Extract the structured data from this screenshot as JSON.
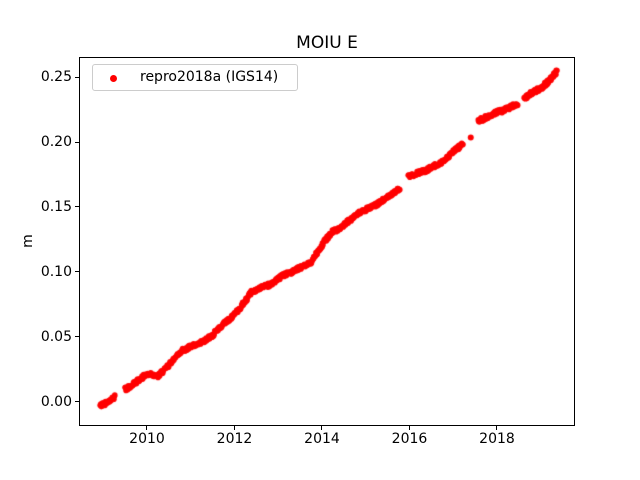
{
  "chart_data": {
    "type": "scatter",
    "title": "MOIU E",
    "xlabel": "",
    "ylabel": "m",
    "legend_entries": [
      "repro2018a (IGS14)"
    ],
    "legend_position": "upper left",
    "marker": "dot",
    "color": "#ff0000",
    "axis_color": "#000000",
    "background": "#ffffff",
    "grid": false,
    "xlim": [
      2008.446,
      2019.783
    ],
    "ylim": [
      -0.0185,
      0.2654
    ],
    "xticks": {
      "values": [
        2010,
        2012,
        2014,
        2016,
        2018
      ],
      "labels": [
        "2010",
        "2012",
        "2014",
        "2016",
        "2018"
      ]
    },
    "yticks": {
      "values": [
        0.0,
        0.05,
        0.1,
        0.15,
        0.2,
        0.25
      ],
      "labels": [
        "0.00",
        "0.05",
        "0.10",
        "0.15",
        "0.20",
        "0.25"
      ]
    },
    "series": [
      {
        "name": "repro2018a (IGS14)",
        "color": "#ff0000",
        "points_per_year": 80,
        "noise_m": 0.0016,
        "trend_segments": [
          {
            "anchors": [
              [
                2008.93,
                -0.0025
              ],
              [
                2009.05,
                -0.001
              ],
              [
                2009.27,
                0.0035
              ]
            ]
          },
          {
            "anchors": [
              [
                2009.5,
                0.01
              ],
              [
                2010.0,
                0.021
              ],
              [
                2010.25,
                0.02
              ],
              [
                2010.75,
                0.038
              ],
              [
                2011.5,
                0.051
              ],
              [
                2012.0,
                0.068
              ],
              [
                2012.4,
                0.084
              ],
              [
                2013.2,
                0.098
              ],
              [
                2013.75,
                0.108
              ],
              [
                2014.2,
                0.13
              ],
              [
                2015.0,
                0.148
              ],
              [
                2015.55,
                0.158
              ],
              [
                2015.78,
                0.164
              ]
            ]
          },
          {
            "anchors": [
              [
                2015.97,
                0.1735
              ],
              [
                2016.1,
                0.1755
              ],
              [
                2016.35,
                0.177
              ],
              [
                2016.7,
                0.184
              ],
              [
                2017.0,
                0.1925
              ],
              [
                2017.22,
                0.1975
              ]
            ]
          },
          {
            "anchors": [
              [
                2017.57,
                0.217
              ],
              [
                2018.07,
                0.223
              ],
              [
                2018.47,
                0.23
              ]
            ]
          },
          {
            "anchors": [
              [
                2018.62,
                0.233
              ],
              [
                2019.0,
                0.2415
              ],
              [
                2019.38,
                0.2545
              ]
            ]
          }
        ],
        "isolated_points": [
          [
            2017.4,
            0.2035
          ]
        ]
      }
    ]
  }
}
